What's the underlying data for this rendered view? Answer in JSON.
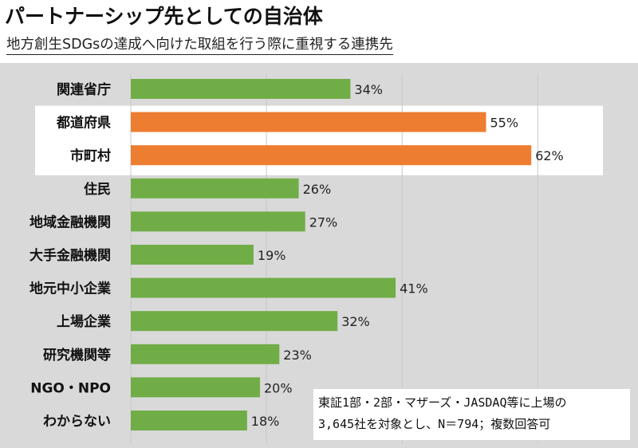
{
  "title": "パートナーシップ先としての自治体",
  "subtitle": "地方創生SDGsの達成へ向けた取組を行う際に重視する連携先",
  "note": {
    "line1": "東証1部・2部・マザーズ・JASDAQ等に上場の",
    "line2": "3,645社を対象とし、N＝794；複数回答可"
  },
  "colors": {
    "default_bar": "#70ad47",
    "highlight_bar": "#ed7d31",
    "panel": "#d9d9d9",
    "highlight_band": "#ffffff"
  },
  "chart_data": {
    "type": "bar",
    "orientation": "horizontal",
    "categories": [
      "関連省庁",
      "都道府県",
      "市町村",
      "住民",
      "地域金融機関",
      "大手金融機関",
      "地元中小企業",
      "上場企業",
      "研究機関等",
      "NGO・NPO",
      "わからない"
    ],
    "values": [
      34,
      55,
      62,
      26,
      27,
      19,
      41,
      32,
      23,
      20,
      18
    ],
    "value_labels": [
      "34%",
      "55%",
      "62%",
      "26%",
      "27%",
      "19%",
      "41%",
      "32%",
      "23%",
      "20%",
      "18%"
    ],
    "highlighted": [
      "都道府県",
      "市町村"
    ],
    "unit": "%",
    "xlim": [
      0,
      62
    ],
    "grid": true
  }
}
